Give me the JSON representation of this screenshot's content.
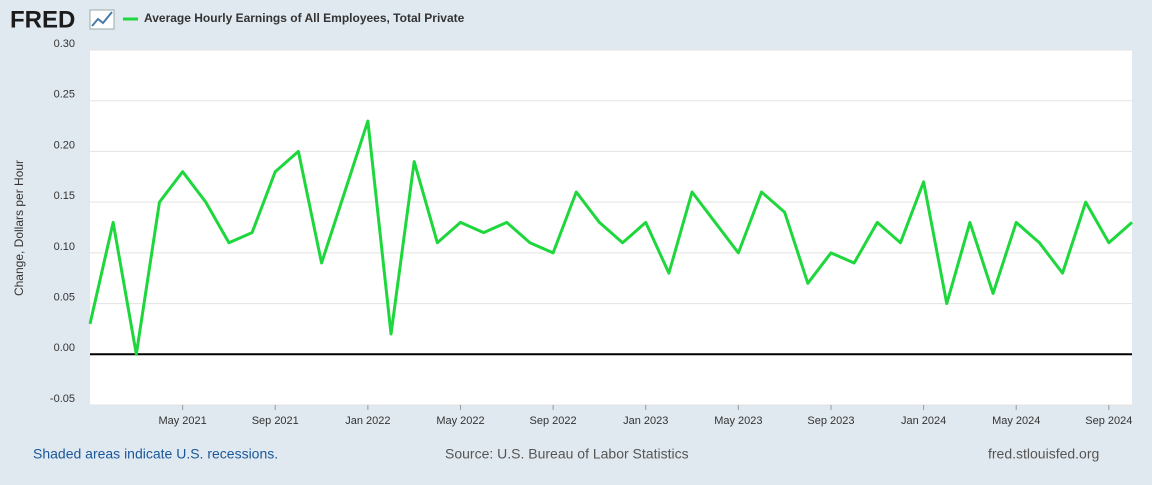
{
  "logo": "FRED",
  "footer": {
    "recessions_note": "Shaded areas indicate U.S. recessions.",
    "source": "Source: U.S. Bureau of Labor Statistics",
    "site": "fred.stlouisfed.org"
  },
  "chart_data": {
    "type": "line",
    "ylabel": "Change, Dollars per Hour",
    "x": [
      "2021-01",
      "2021-02",
      "2021-03",
      "2021-04",
      "2021-05",
      "2021-06",
      "2021-07",
      "2021-08",
      "2021-09",
      "2021-10",
      "2021-11",
      "2021-12",
      "2022-01",
      "2022-02",
      "2022-03",
      "2022-04",
      "2022-05",
      "2022-06",
      "2022-07",
      "2022-08",
      "2022-09",
      "2022-10",
      "2022-11",
      "2022-12",
      "2023-01",
      "2023-02",
      "2023-03",
      "2023-04",
      "2023-05",
      "2023-06",
      "2023-07",
      "2023-08",
      "2023-09",
      "2023-10",
      "2023-11",
      "2023-12",
      "2024-01",
      "2024-02",
      "2024-03",
      "2024-04",
      "2024-05",
      "2024-06",
      "2024-07",
      "2024-08",
      "2024-09",
      "2024-10"
    ],
    "series": [
      {
        "name": "Average Hourly Earnings of All Employees, Total Private",
        "color": "#1ed73c",
        "values": [
          0.03,
          0.13,
          0.0,
          0.15,
          0.18,
          0.15,
          0.11,
          0.12,
          0.18,
          0.2,
          0.09,
          0.16,
          0.23,
          0.02,
          0.19,
          0.11,
          0.13,
          0.12,
          0.13,
          0.11,
          0.1,
          0.16,
          0.13,
          0.11,
          0.13,
          0.08,
          0.16,
          0.13,
          0.1,
          0.16,
          0.14,
          0.07,
          0.1,
          0.09,
          0.13,
          0.11,
          0.17,
          0.05,
          0.13,
          0.06,
          0.13,
          0.11,
          0.08,
          0.15,
          0.11,
          0.13
        ]
      }
    ],
    "xticks": [
      {
        "value": "2021-05",
        "label": "May 2021"
      },
      {
        "value": "2021-09",
        "label": "Sep 2021"
      },
      {
        "value": "2022-01",
        "label": "Jan 2022"
      },
      {
        "value": "2022-05",
        "label": "May 2022"
      },
      {
        "value": "2022-09",
        "label": "Sep 2022"
      },
      {
        "value": "2023-01",
        "label": "Jan 2023"
      },
      {
        "value": "2023-05",
        "label": "May 2023"
      },
      {
        "value": "2023-09",
        "label": "Sep 2023"
      },
      {
        "value": "2024-01",
        "label": "Jan 2024"
      },
      {
        "value": "2024-05",
        "label": "May 2024"
      },
      {
        "value": "2024-09",
        "label": "Sep 2024"
      }
    ],
    "ylim": [
      -0.05,
      0.3
    ],
    "yticks": [
      {
        "value": 0.3,
        "label": "0.30"
      },
      0.25,
      {
        "value": 0.2,
        "label": "0.20"
      },
      0.15,
      {
        "value": 0.1,
        "label": "0.10"
      },
      0.05,
      {
        "value": 0,
        "label": "0.00"
      },
      -0.05
    ],
    "grid": true
  }
}
